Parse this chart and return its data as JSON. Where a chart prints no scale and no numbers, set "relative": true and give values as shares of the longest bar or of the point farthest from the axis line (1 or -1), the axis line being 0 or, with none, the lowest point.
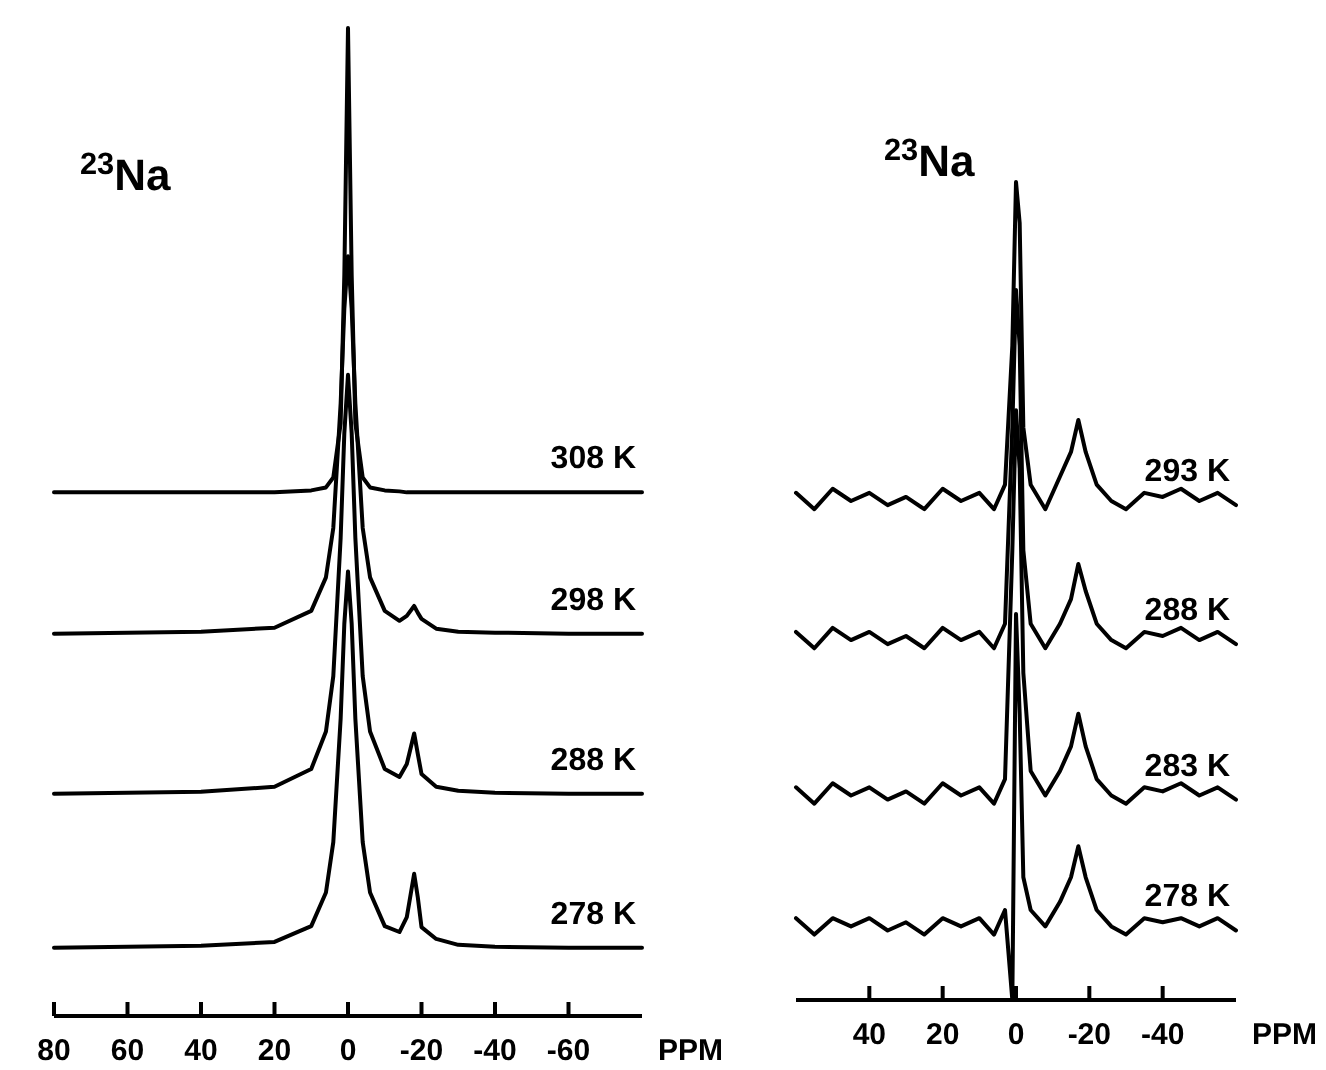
{
  "chart_data": [
    {
      "type": "line",
      "title": "$^{23}$Na",
      "xlabel": "PPM",
      "relative": true,
      "xlim": [
        80,
        -80
      ],
      "xticks": [
        80,
        60,
        40,
        20,
        0,
        -20,
        -40,
        -60
      ],
      "x": [
        80,
        40,
        20,
        10,
        6,
        4,
        2,
        1,
        0,
        -1,
        -2,
        -4,
        -6,
        -10,
        -14,
        -16,
        -18,
        -19,
        -20,
        -24,
        -30,
        -40,
        -60,
        -80
      ],
      "series": [
        {
          "name": "308 K",
          "color": "#000000",
          "values": [
            0.53,
            0.53,
            0.53,
            0.532,
            0.535,
            0.545,
            0.6,
            0.75,
            1,
            0.75,
            0.6,
            0.545,
            0.535,
            0.532,
            0.531,
            0.53,
            0.53,
            0.53,
            0.53,
            0.53,
            0.53,
            0.53,
            0.53,
            0.53
          ]
        },
        {
          "name": "298 K",
          "color": "#000000",
          "values": [
            0.387,
            0.389,
            0.393,
            0.41,
            0.444,
            0.494,
            0.62,
            0.716,
            0.769,
            0.716,
            0.62,
            0.494,
            0.444,
            0.41,
            0.4,
            0.405,
            0.415,
            0.408,
            0.402,
            0.392,
            0.389,
            0.388,
            0.387,
            0.387
          ]
        },
        {
          "name": "288 K",
          "color": "#000000",
          "values": [
            0.225,
            0.227,
            0.232,
            0.25,
            0.288,
            0.344,
            0.484,
            0.59,
            0.649,
            0.59,
            0.484,
            0.344,
            0.288,
            0.25,
            0.242,
            0.255,
            0.286,
            0.265,
            0.245,
            0.232,
            0.228,
            0.226,
            0.225,
            0.225
          ]
        },
        {
          "name": "278 K",
          "color": "#000000",
          "values": [
            0.069,
            0.071,
            0.075,
            0.091,
            0.125,
            0.176,
            0.301,
            0.397,
            0.45,
            0.397,
            0.301,
            0.176,
            0.125,
            0.091,
            0.085,
            0.1,
            0.144,
            0.12,
            0.09,
            0.078,
            0.072,
            0.07,
            0.069,
            0.069
          ]
        }
      ]
    },
    {
      "type": "line",
      "title": "$^{23}$Na",
      "xlabel": "PPM",
      "relative": true,
      "xlim": [
        60,
        -60
      ],
      "xticks": [
        40,
        20,
        0,
        -20,
        -40
      ],
      "x": [
        60,
        55,
        50,
        45,
        40,
        35,
        30,
        25,
        20,
        15,
        10,
        6,
        3,
        1,
        0,
        -1,
        -2,
        -4,
        -8,
        -12,
        -15,
        -17,
        -19,
        -22,
        -26,
        -30,
        -35,
        -40,
        -45,
        -50,
        -55,
        -60
      ],
      "series": [
        {
          "name": "293 K",
          "color": "#000000",
          "values": [
            0.62,
            0.6,
            0.625,
            0.61,
            0.62,
            0.605,
            0.615,
            0.6,
            0.625,
            0.61,
            0.62,
            0.6,
            0.63,
            0.8,
            1,
            0.95,
            0.7,
            0.63,
            0.6,
            0.64,
            0.67,
            0.709,
            0.67,
            0.63,
            0.61,
            0.6,
            0.62,
            0.615,
            0.625,
            0.61,
            0.62,
            0.605
          ]
        },
        {
          "name": "288 K",
          "color": "#000000",
          "values": [
            0.45,
            0.43,
            0.455,
            0.44,
            0.45,
            0.435,
            0.445,
            0.43,
            0.455,
            0.44,
            0.45,
            0.43,
            0.46,
            0.7,
            0.868,
            0.8,
            0.55,
            0.46,
            0.43,
            0.46,
            0.49,
            0.533,
            0.5,
            0.46,
            0.44,
            0.43,
            0.45,
            0.445,
            0.455,
            0.44,
            0.45,
            0.435
          ]
        },
        {
          "name": "283 K",
          "color": "#000000",
          "values": [
            0.26,
            0.24,
            0.265,
            0.25,
            0.26,
            0.245,
            0.255,
            0.24,
            0.265,
            0.25,
            0.26,
            0.24,
            0.27,
            0.55,
            0.721,
            0.65,
            0.4,
            0.28,
            0.25,
            0.28,
            0.31,
            0.35,
            0.31,
            0.27,
            0.25,
            0.24,
            0.26,
            0.255,
            0.265,
            0.25,
            0.26,
            0.245
          ]
        },
        {
          "name": "278 K",
          "color": "#000000",
          "values": [
            0.1,
            0.08,
            0.1,
            0.09,
            0.1,
            0.085,
            0.095,
            0.08,
            0.1,
            0.09,
            0.1,
            0.08,
            0.11,
            0.0,
            0.472,
            0.35,
            0.15,
            0.11,
            0.09,
            0.12,
            0.15,
            0.188,
            0.15,
            0.11,
            0.09,
            0.08,
            0.1,
            0.095,
            0.1,
            0.09,
            0.1,
            0.085
          ]
        }
      ]
    }
  ]
}
